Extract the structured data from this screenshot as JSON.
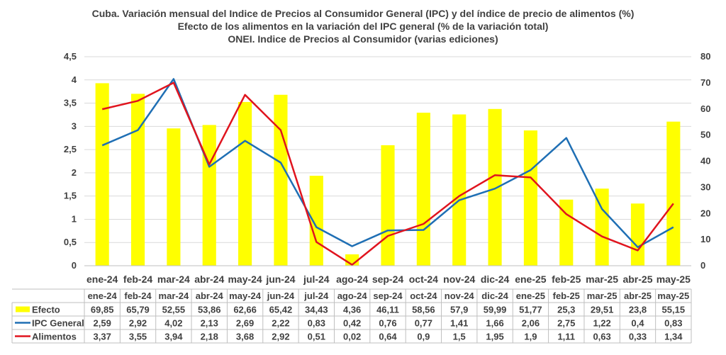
{
  "title": {
    "line1": "Cuba. Variación mensual del Indice de Precios al Consumidor General  (IPC) y del índice de precio de alimentos (%)",
    "line2": "Efecto de los alimentos en la variación del IPC general (%  de la variación total)",
    "line3": "ONEI. Indice de Precios al Consumidor (varias ediciones)"
  },
  "colors": {
    "efecto": "#FFFF00",
    "ipc": "#1F6FB4",
    "alimentos": "#E0141E",
    "grid": "#D9D9D9",
    "text": "#404040"
  },
  "chart_data": {
    "type": "bar+line",
    "categories": [
      "ene-24",
      "feb-24",
      "mar-24",
      "abr-24",
      "may-24",
      "jun-24",
      "jul-24",
      "ago-24",
      "sep-24",
      "oct-24",
      "nov-24",
      "dic-24",
      "ene-25",
      "feb-25",
      "mar-25",
      "abr-25",
      "may-25"
    ],
    "series": [
      {
        "name": "Efecto",
        "type": "bar",
        "axis": "right",
        "values": [
          69.85,
          65.79,
          52.55,
          53.86,
          62.66,
          65.42,
          34.43,
          4.36,
          46.11,
          58.56,
          57.9,
          59.99,
          51.77,
          25.3,
          29.51,
          23.8,
          55.15
        ],
        "labels": [
          "69,85",
          "65,79",
          "52,55",
          "53,86",
          "62,66",
          "65,42",
          "34,43",
          "4,36",
          "46,11",
          "58,56",
          "57,9",
          "59,99",
          "51,77",
          "25,3",
          "29,51",
          "23,8",
          "55,15"
        ]
      },
      {
        "name": "IPC General",
        "type": "line",
        "axis": "left",
        "values": [
          2.59,
          2.92,
          4.02,
          2.13,
          2.69,
          2.22,
          0.83,
          0.42,
          0.76,
          0.77,
          1.41,
          1.66,
          2.06,
          2.75,
          1.22,
          0.4,
          0.83
        ],
        "labels": [
          "2,59",
          "2,92",
          "4,02",
          "2,13",
          "2,69",
          "2,22",
          "0,83",
          "0,42",
          "0,76",
          "0,77",
          "1,41",
          "1,66",
          "2,06",
          "2,75",
          "1,22",
          "0,4",
          "0,83"
        ]
      },
      {
        "name": "Alimentos",
        "type": "line",
        "axis": "left",
        "values": [
          3.37,
          3.55,
          3.94,
          2.18,
          3.68,
          2.92,
          0.51,
          0.02,
          0.64,
          0.9,
          1.5,
          1.95,
          1.9,
          1.11,
          0.63,
          0.33,
          1.34
        ],
        "labels": [
          "3,37",
          "3,55",
          "3,94",
          "2,18",
          "3,68",
          "2,92",
          "0,51",
          "0,02",
          "0,64",
          "0,9",
          "1,5",
          "1,95",
          "1,9",
          "1,11",
          "0,63",
          "0,33",
          "1,34"
        ]
      }
    ],
    "left_axis": {
      "min": 0,
      "max": 4.5,
      "step": 0.5,
      "tick_labels": [
        "0",
        "0,5",
        "1",
        "1,5",
        "2",
        "2,5",
        "3",
        "3,5",
        "4",
        "4,5"
      ]
    },
    "right_axis": {
      "min": 0,
      "max": 80,
      "step": 10,
      "tick_labels": [
        "0",
        "10",
        "20",
        "30",
        "40",
        "50",
        "60",
        "70",
        "80"
      ]
    },
    "grid": true,
    "legend": "data-table-below"
  }
}
